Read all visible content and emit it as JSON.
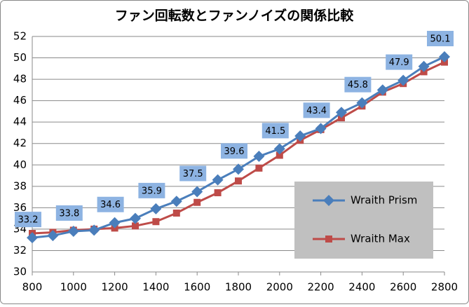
{
  "chart_data": {
    "type": "line",
    "title": "ファン回転数とファンノイズの関係比較",
    "x": [
      800,
      900,
      1000,
      1100,
      1200,
      1300,
      1400,
      1500,
      1600,
      1700,
      1800,
      1900,
      2000,
      2100,
      2200,
      2300,
      2400,
      2500,
      2600,
      2700,
      2800
    ],
    "series": [
      {
        "name": "Wraith Prism",
        "color": "#4a7ebb",
        "marker": "diamond",
        "values": [
          33.2,
          33.4,
          33.8,
          33.9,
          34.6,
          35.0,
          35.9,
          36.6,
          37.5,
          38.6,
          39.6,
          40.8,
          41.5,
          42.7,
          43.4,
          44.9,
          45.8,
          47.0,
          47.9,
          49.2,
          50.1
        ],
        "value_labels": [
          "33.2",
          null,
          "33.8",
          null,
          "34.6",
          null,
          "35.9",
          null,
          "37.5",
          null,
          "39.6",
          null,
          "41.5",
          null,
          "43.4",
          null,
          "45.8",
          null,
          "47.9",
          null,
          "50.1"
        ]
      },
      {
        "name": "Wraith Max",
        "color": "#be4b48",
        "marker": "square",
        "values": [
          33.6,
          33.7,
          33.9,
          34.0,
          34.1,
          34.3,
          34.7,
          35.5,
          36.5,
          37.4,
          38.5,
          39.7,
          40.9,
          42.3,
          43.3,
          44.4,
          45.5,
          46.8,
          47.6,
          48.7,
          49.6
        ]
      }
    ],
    "xlim": [
      800,
      2800
    ],
    "xticks": [
      800,
      1000,
      1200,
      1400,
      1600,
      1800,
      2000,
      2200,
      2400,
      2600,
      2800
    ],
    "ylim": [
      30,
      52
    ],
    "yticks": [
      30,
      32,
      34,
      36,
      38,
      40,
      42,
      44,
      46,
      48,
      50,
      52
    ],
    "grid": true
  }
}
